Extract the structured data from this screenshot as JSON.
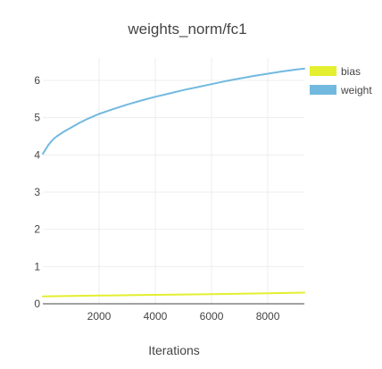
{
  "chart_data": {
    "type": "line",
    "title": "weights_norm/fc1",
    "xlabel": "Iterations",
    "ylabel": "",
    "xlim": [
      0,
      9300
    ],
    "ylim": [
      0,
      6.6
    ],
    "x_ticks": [
      2000,
      4000,
      6000,
      8000
    ],
    "x_tick_labels": [
      "2000",
      "4000",
      "6000",
      "8000"
    ],
    "y_ticks": [
      0,
      1,
      2,
      3,
      4,
      5,
      6
    ],
    "y_tick_labels": [
      "0",
      "1",
      "2",
      "3",
      "4",
      "5",
      "6"
    ],
    "grid": true,
    "legend_position": "top-right",
    "series": [
      {
        "name": "bias",
        "color": "#e3ef2f",
        "x": [
          0,
          1000,
          2000,
          3000,
          4000,
          5000,
          6000,
          7000,
          8000,
          9300
        ],
        "y": [
          0.2,
          0.21,
          0.22,
          0.23,
          0.24,
          0.25,
          0.26,
          0.27,
          0.28,
          0.3
        ]
      },
      {
        "name": "weight",
        "color": "#72b9e0",
        "x": [
          0,
          100,
          200,
          300,
          400,
          500,
          700,
          1000,
          1300,
          1600,
          2000,
          2500,
          3000,
          3500,
          4000,
          4500,
          5000,
          5500,
          6000,
          6500,
          7000,
          7500,
          8000,
          8500,
          9000,
          9300
        ],
        "y": [
          4.03,
          4.15,
          4.27,
          4.36,
          4.44,
          4.5,
          4.6,
          4.73,
          4.86,
          4.97,
          5.1,
          5.23,
          5.35,
          5.46,
          5.56,
          5.65,
          5.74,
          5.82,
          5.9,
          5.98,
          6.05,
          6.12,
          6.18,
          6.24,
          6.29,
          6.32
        ]
      }
    ]
  }
}
